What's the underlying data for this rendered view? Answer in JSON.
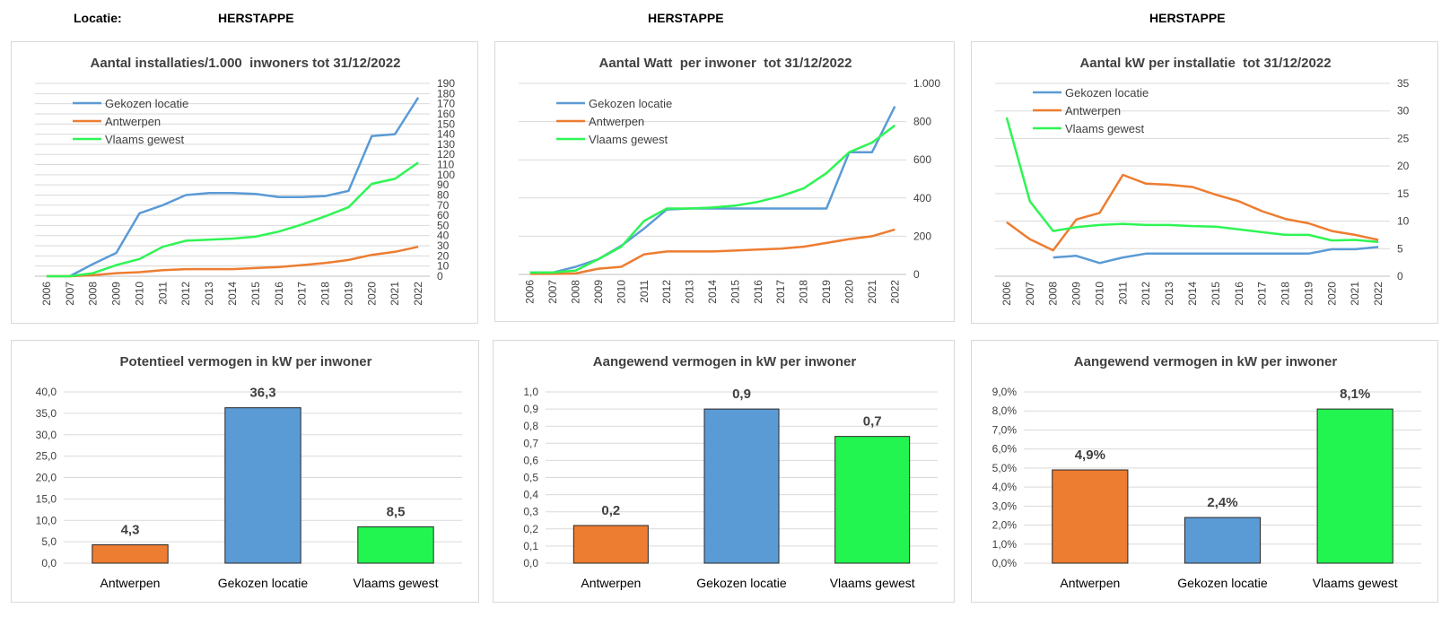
{
  "header": {
    "location_label": "Locatie:",
    "location_1": "HERSTAPPE",
    "location_2": "HERSTAPPE",
    "location_3": "HERSTAPPE"
  },
  "chart_data": [
    {
      "type": "line",
      "title": "Aantal installaties/1.000  inwoners tot 31/12/2022",
      "categories": [
        "2006",
        "2007",
        "2008",
        "2009",
        "2010",
        "2011",
        "2012",
        "2013",
        "2014",
        "2015",
        "2016",
        "2017",
        "2018",
        "2019",
        "2020",
        "2021",
        "2022"
      ],
      "series": [
        {
          "name": "Gekozen locatie",
          "color": "#5b9bd5",
          "values": [
            null,
            0,
            12,
            23,
            62,
            70,
            80,
            82,
            82,
            81,
            78,
            78,
            79,
            84,
            138,
            140,
            176
          ]
        },
        {
          "name": "Antwerpen",
          "color": "#ed7d31",
          "values": [
            0,
            0,
            1,
            3,
            4,
            6,
            7,
            7,
            7,
            8,
            9,
            11,
            13,
            16,
            21,
            24,
            29
          ]
        },
        {
          "name": "Vlaams gewest",
          "color": "#2ef554",
          "values": [
            0,
            0,
            3,
            11,
            17,
            29,
            35,
            36,
            37,
            39,
            44,
            51,
            59,
            68,
            91,
            96,
            112
          ]
        }
      ],
      "ylim": [
        0,
        190
      ],
      "yticks": [
        0,
        10,
        20,
        30,
        40,
        50,
        60,
        70,
        80,
        90,
        100,
        110,
        120,
        130,
        140,
        150,
        160,
        170,
        180,
        190
      ],
      "y_axis_side": "right",
      "grid": true,
      "legend": "upper left"
    },
    {
      "type": "line",
      "title": "Aantal Watt  per inwoner  tot 31/12/2022",
      "categories": [
        "2006",
        "2007",
        "2008",
        "2009",
        "2010",
        "2011",
        "2012",
        "2013",
        "2014",
        "2015",
        "2016",
        "2017",
        "2018",
        "2019",
        "2020",
        "2021",
        "2022"
      ],
      "series": [
        {
          "name": "Gekozen locatie",
          "color": "#5b9bd5",
          "values": [
            10,
            10,
            40,
            80,
            150,
            240,
            340,
            345,
            345,
            345,
            345,
            345,
            345,
            345,
            640,
            640,
            880
          ]
        },
        {
          "name": "Antwerpen",
          "color": "#ed7d31",
          "values": [
            3,
            3,
            5,
            30,
            40,
            105,
            120,
            120,
            120,
            125,
            130,
            135,
            145,
            165,
            185,
            200,
            235
          ]
        },
        {
          "name": "Vlaams gewest",
          "color": "#2ef554",
          "values": [
            10,
            10,
            20,
            80,
            145,
            280,
            345,
            345,
            350,
            360,
            380,
            410,
            450,
            530,
            640,
            690,
            780
          ]
        }
      ],
      "ylim": [
        0,
        1000
      ],
      "yticks": [
        0,
        200,
        400,
        600,
        800,
        {
          "value": 1000,
          "label": "1.000"
        }
      ],
      "y_axis_side": "right",
      "grid": true,
      "legend": "upper left"
    },
    {
      "type": "line",
      "title": "Aantal kW per installatie  tot 31/12/2022",
      "categories": [
        "2006",
        "2007",
        "2008",
        "2009",
        "2010",
        "2011",
        "2012",
        "2013",
        "2014",
        "2015",
        "2016",
        "2017",
        "2018",
        "2019",
        "2020",
        "2021",
        "2022"
      ],
      "series": [
        {
          "name": "Gekozen locatie",
          "color": "#5b9bd5",
          "values": [
            null,
            null,
            3.4,
            3.7,
            2.4,
            3.4,
            4.1,
            4.1,
            4.1,
            4.1,
            4.1,
            4.1,
            4.1,
            4.1,
            4.9,
            4.9,
            5.3
          ]
        },
        {
          "name": "Antwerpen",
          "color": "#ed7d31",
          "values": [
            9.8,
            6.7,
            4.7,
            10.3,
            11.5,
            18.4,
            16.8,
            16.6,
            16.2,
            14.8,
            13.6,
            11.8,
            10.4,
            9.6,
            8.2,
            7.5,
            6.6
          ]
        },
        {
          "name": "Vlaams gewest",
          "color": "#2ef554",
          "values": [
            28.8,
            13.6,
            8.2,
            8.9,
            9.3,
            9.5,
            9.3,
            9.3,
            9.1,
            9,
            8.5,
            8,
            7.5,
            7.5,
            6.5,
            6.6,
            6.2
          ]
        }
      ],
      "ylim": [
        0,
        35
      ],
      "yticks": [
        0,
        5,
        10,
        15,
        20,
        25,
        30,
        35
      ],
      "y_axis_side": "right",
      "grid": true,
      "legend": "upper left"
    },
    {
      "type": "bar",
      "title": "Potentieel vermogen in kW per inwoner",
      "categories": [
        "Antwerpen",
        "Gekozen locatie",
        "Vlaams gewest"
      ],
      "values": [
        4.3,
        36.3,
        8.5
      ],
      "value_labels": [
        "4,3",
        "36,3",
        "8,5"
      ],
      "colors": [
        "#ed7d31",
        "#5b9bd5",
        "#22f550"
      ],
      "ylim": [
        0,
        40
      ],
      "yticks": [
        {
          "value": 0,
          "label": "0,0"
        },
        {
          "value": 5,
          "label": "5,0"
        },
        {
          "value": 10,
          "label": "10,0"
        },
        {
          "value": 15,
          "label": "15,0"
        },
        {
          "value": 20,
          "label": "20,0"
        },
        {
          "value": 25,
          "label": "25,0"
        },
        {
          "value": 30,
          "label": "30,0"
        },
        {
          "value": 35,
          "label": "35,0"
        },
        {
          "value": 40,
          "label": "40,0"
        }
      ],
      "grid": true
    },
    {
      "type": "bar",
      "title": "Aangewend vermogen in kW per inwoner",
      "categories": [
        "Antwerpen",
        "Gekozen locatie",
        "Vlaams gewest"
      ],
      "values": [
        0.22,
        0.9,
        0.74
      ],
      "value_labels": [
        "0,2",
        "0,9",
        "0,7"
      ],
      "colors": [
        "#ed7d31",
        "#5b9bd5",
        "#22f550"
      ],
      "ylim": [
        0,
        1
      ],
      "yticks": [
        {
          "value": 0,
          "label": "0,0"
        },
        {
          "value": 0.1,
          "label": "0,1"
        },
        {
          "value": 0.2,
          "label": "0,2"
        },
        {
          "value": 0.3,
          "label": "0,3"
        },
        {
          "value": 0.4,
          "label": "0,4"
        },
        {
          "value": 0.5,
          "label": "0,5"
        },
        {
          "value": 0.6,
          "label": "0,6"
        },
        {
          "value": 0.7,
          "label": "0,7"
        },
        {
          "value": 0.8,
          "label": "0,8"
        },
        {
          "value": 0.9,
          "label": "0,9"
        },
        {
          "value": 1,
          "label": "1,0"
        }
      ],
      "grid": true
    },
    {
      "type": "bar",
      "title": "Aangewend vermogen in kW per inwoner",
      "categories": [
        "Antwerpen",
        "Gekozen locatie",
        "Vlaams gewest"
      ],
      "values": [
        4.9,
        2.4,
        8.1
      ],
      "value_labels": [
        "4,9%",
        "2,4%",
        "8,1%"
      ],
      "colors": [
        "#ed7d31",
        "#5b9bd5",
        "#22f550"
      ],
      "ylim": [
        0,
        9
      ],
      "yticks": [
        {
          "value": 0,
          "label": "0,0%"
        },
        {
          "value": 1,
          "label": "1,0%"
        },
        {
          "value": 2,
          "label": "2,0%"
        },
        {
          "value": 3,
          "label": "3,0%"
        },
        {
          "value": 4,
          "label": "4,0%"
        },
        {
          "value": 5,
          "label": "5,0%"
        },
        {
          "value": 6,
          "label": "6,0%"
        },
        {
          "value": 7,
          "label": "7,0%"
        },
        {
          "value": 8,
          "label": "8,0%"
        },
        {
          "value": 9,
          "label": "9,0%"
        }
      ],
      "grid": true
    }
  ]
}
